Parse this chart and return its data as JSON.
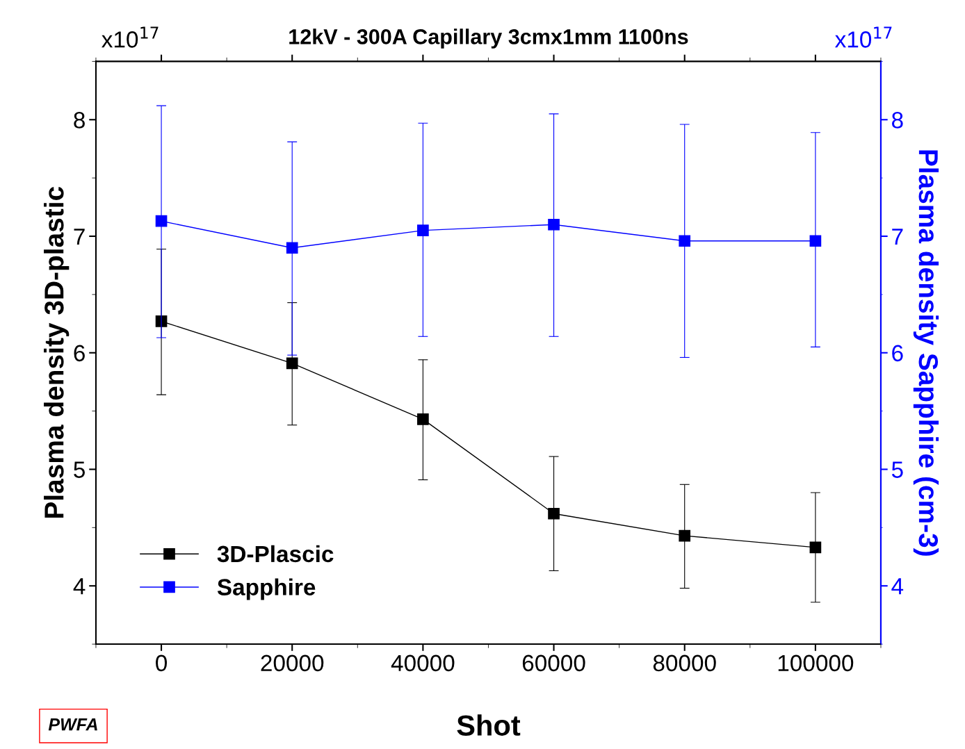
{
  "chart_data": {
    "type": "line",
    "title": "12kV - 300A Capillary 3cmx1mm 1100ns",
    "xlabel": "Shot",
    "ylabel": "Plasma density 3D-plastic",
    "y2label": "Plasma density Sapphire (cm-3)",
    "x": [
      0,
      20000,
      40000,
      60000,
      80000,
      100000
    ],
    "series": [
      {
        "name": "3D-Plascic",
        "color": "#000000",
        "values": [
          6.27,
          5.91,
          5.43,
          4.62,
          4.43,
          4.33
        ],
        "errors": [
          [
            5.64,
            6.89
          ],
          [
            5.38,
            6.43
          ],
          [
            4.91,
            5.94
          ],
          [
            4.13,
            5.11
          ],
          [
            3.98,
            4.87
          ],
          [
            3.86,
            4.8
          ]
        ]
      },
      {
        "name": "Sapphire",
        "color": "#0000ff",
        "axis": "y2",
        "values": [
          7.13,
          6.9,
          7.05,
          7.1,
          6.96,
          6.96
        ],
        "errors": [
          [
            6.13,
            8.12
          ],
          [
            5.98,
            7.81
          ],
          [
            6.14,
            7.97
          ],
          [
            6.14,
            8.05
          ],
          [
            5.96,
            7.96
          ],
          [
            6.05,
            7.89
          ]
        ]
      }
    ],
    "xlim": [
      -10000,
      110000
    ],
    "xticks": [
      0,
      20000,
      40000,
      60000,
      80000,
      100000
    ],
    "ylim": [
      3.5,
      8.5
    ],
    "yticks": [
      4,
      5,
      6,
      7,
      8
    ],
    "y2lim": [
      3.5,
      8.5
    ],
    "y2ticks": [
      4,
      5,
      6,
      7,
      8
    ],
    "annotations": [
      "x10$^{17}$",
      "x10$^{17}$",
      "PWFA"
    ],
    "marker": "square",
    "line_style": "solid",
    "legend": "bottom left",
    "grid": false
  }
}
